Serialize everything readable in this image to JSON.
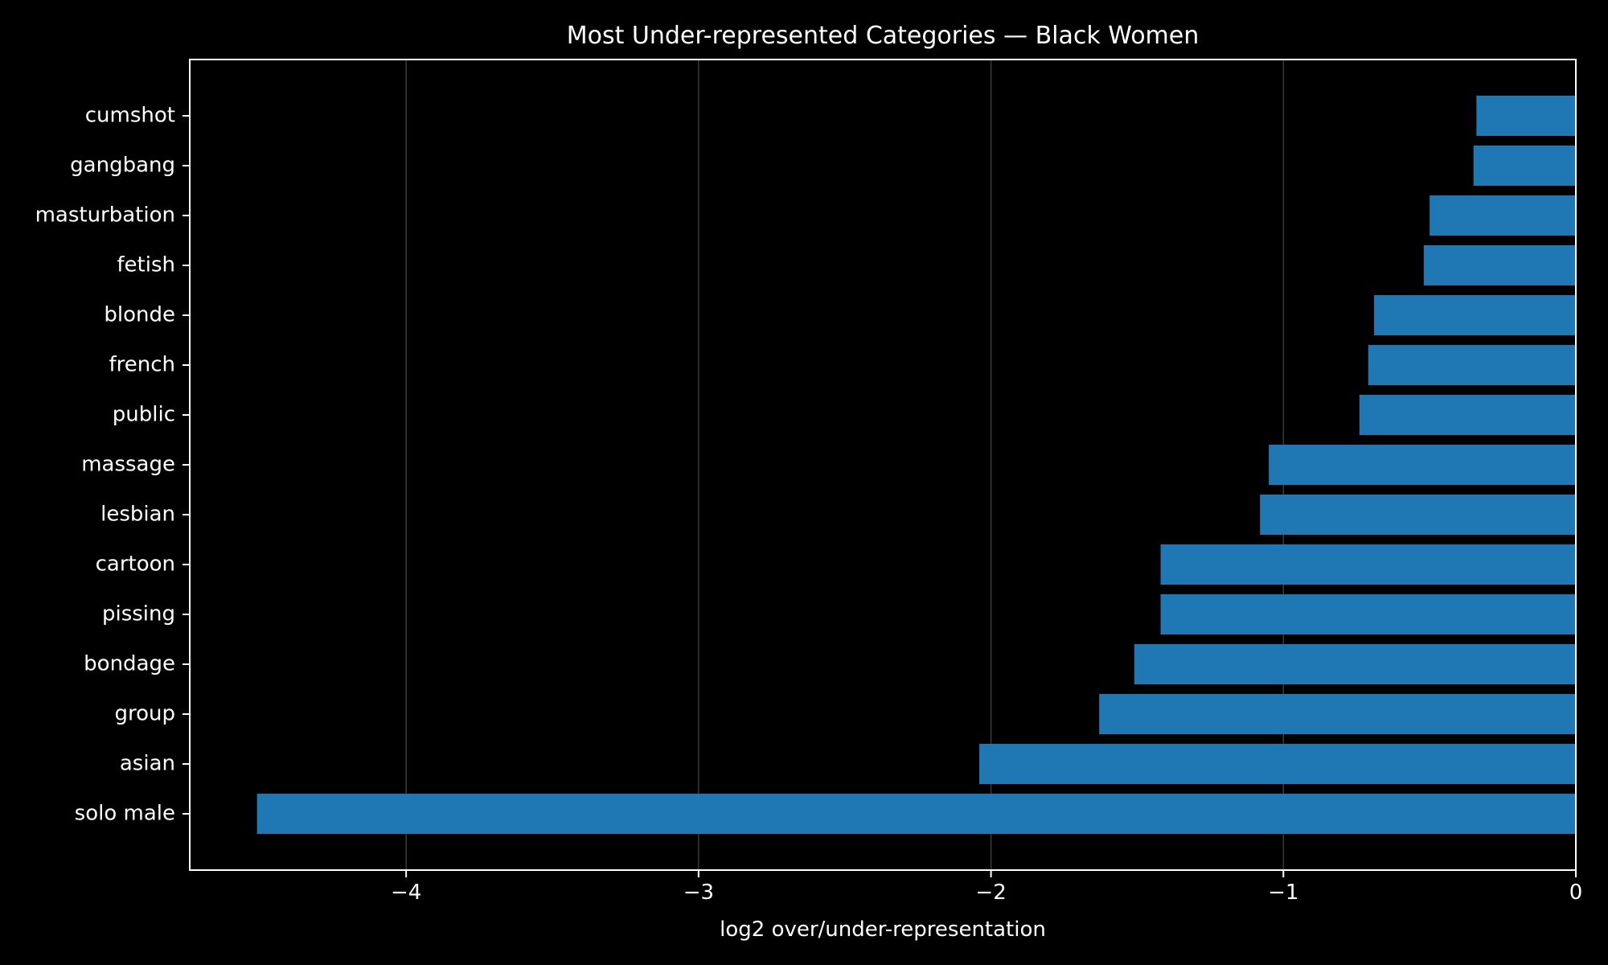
{
  "chart_data": {
    "type": "bar",
    "orientation": "horizontal",
    "title": "Most Under-represented Categories — Black Women",
    "xlabel": "log2 over/under-representation",
    "ylabel": "",
    "xlim": [
      -4.74,
      0
    ],
    "xticks": [
      -4,
      -3,
      -2,
      -1,
      0
    ],
    "xtick_labels": [
      "−4",
      "−3",
      "−2",
      "−1",
      "0"
    ],
    "grid": "vertical",
    "categories": [
      "cumshot",
      "gangbang",
      "masturbation",
      "fetish",
      "blonde",
      "french",
      "public",
      "massage",
      "lesbian",
      "cartoon",
      "pissing",
      "bondage",
      "group",
      "asian",
      "solo male"
    ],
    "values": [
      -0.34,
      -0.35,
      -0.5,
      -0.52,
      -0.69,
      -0.71,
      -0.74,
      -1.05,
      -1.08,
      -1.42,
      -1.42,
      -1.51,
      -1.63,
      -2.04,
      -4.51
    ]
  },
  "colors": {
    "background": "#000000",
    "axes": "#ffffff",
    "bar": "#1f77b4",
    "grid": "#3a3a3a",
    "text": "#ffffff"
  }
}
